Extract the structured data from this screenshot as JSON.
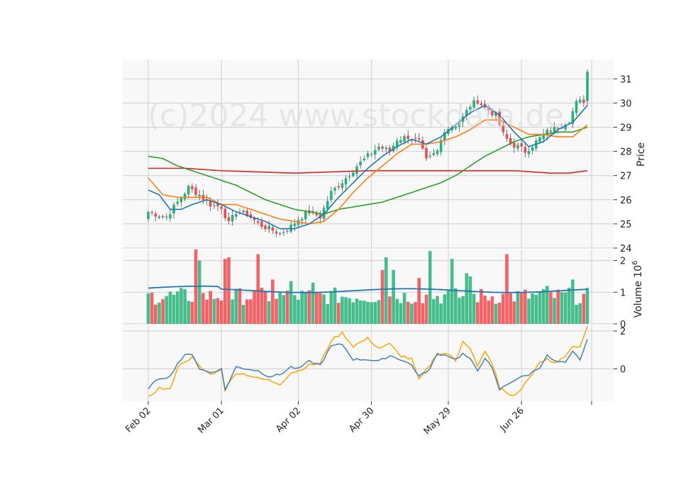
{
  "watermark": "(c)2024 www.stockdata.de",
  "chart_data": {
    "type": "candlestick",
    "colors": {
      "up": "#26b37a",
      "down": "#f0494e",
      "ma_short": "#1f77b4",
      "ma_mid": "#ff7f0e",
      "ma_long": "#2ca02c",
      "ma_longest": "#d62728",
      "volume_ma": "#1f77b4",
      "osc_a": "#4682b4",
      "osc_b": "#ffa500",
      "grid": "#d0d0d0",
      "panel_bg": "#f8f8f8"
    },
    "x_tick_labels": [
      "Feb 02",
      "Mar 01",
      "Apr 02",
      "Apr 30",
      "May 29",
      "Jun 26"
    ],
    "x_tick_index": [
      0,
      20,
      41,
      61,
      82,
      102
    ],
    "n_points": 121,
    "price_panel": {
      "ylabel": "Price",
      "ylim": [
        24,
        31.8
      ],
      "yticks": [
        24,
        25,
        26,
        27,
        28,
        29,
        30,
        31
      ],
      "close_anchors": [
        [
          0,
          25.5
        ],
        [
          2,
          25.4
        ],
        [
          5,
          25.3
        ],
        [
          8,
          25.9
        ],
        [
          11,
          26.5
        ],
        [
          14,
          26.2
        ],
        [
          17,
          25.8
        ],
        [
          20,
          25.7
        ],
        [
          22,
          25.0
        ],
        [
          24,
          25.5
        ],
        [
          27,
          25.4
        ],
        [
          30,
          25.0
        ],
        [
          33,
          24.8
        ],
        [
          36,
          24.6
        ],
        [
          39,
          24.9
        ],
        [
          41,
          25.2
        ],
        [
          44,
          25.5
        ],
        [
          47,
          25.3
        ],
        [
          50,
          26.3
        ],
        [
          54,
          26.9
        ],
        [
          57,
          27.4
        ],
        [
          60,
          27.8
        ],
        [
          63,
          28.2
        ],
        [
          66,
          28.0
        ],
        [
          68,
          28.5
        ],
        [
          71,
          28.6
        ],
        [
          74,
          28.4
        ],
        [
          76,
          27.6
        ],
        [
          79,
          28.0
        ],
        [
          81,
          28.9
        ],
        [
          84,
          29.1
        ],
        [
          86,
          29.4
        ],
        [
          88,
          29.9
        ],
        [
          90,
          30.1
        ],
        [
          92,
          29.8
        ],
        [
          95,
          29.5
        ],
        [
          97,
          28.7
        ],
        [
          99,
          28.3
        ],
        [
          101,
          28.2
        ],
        [
          103,
          28.0
        ],
        [
          106,
          28.4
        ],
        [
          109,
          28.8
        ],
        [
          112,
          29.0
        ],
        [
          115,
          29.3
        ],
        [
          117,
          30.0
        ],
        [
          119,
          30.1
        ],
        [
          120,
          31.3
        ]
      ],
      "ma_short_anchors": [
        [
          0,
          26.4
        ],
        [
          3,
          26.2
        ],
        [
          6,
          25.6
        ],
        [
          9,
          25.6
        ],
        [
          12,
          25.8
        ],
        [
          16,
          26.0
        ],
        [
          20,
          25.8
        ],
        [
          24,
          25.5
        ],
        [
          28,
          25.3
        ],
        [
          32,
          25.1
        ],
        [
          36,
          24.8
        ],
        [
          40,
          24.8
        ],
        [
          44,
          25.0
        ],
        [
          48,
          25.4
        ],
        [
          52,
          26.1
        ],
        [
          56,
          26.7
        ],
        [
          60,
          27.3
        ],
        [
          64,
          27.8
        ],
        [
          68,
          28.2
        ],
        [
          72,
          28.5
        ],
        [
          76,
          28.3
        ],
        [
          80,
          28.6
        ],
        [
          84,
          29.1
        ],
        [
          88,
          29.6
        ],
        [
          92,
          29.9
        ],
        [
          96,
          29.5
        ],
        [
          100,
          28.8
        ],
        [
          104,
          28.2
        ],
        [
          108,
          28.4
        ],
        [
          112,
          28.9
        ],
        [
          116,
          29.2
        ],
        [
          120,
          29.9
        ]
      ],
      "ma_mid_anchors": [
        [
          0,
          26.9
        ],
        [
          4,
          26.2
        ],
        [
          8,
          26.1
        ],
        [
          12,
          26.1
        ],
        [
          16,
          26.1
        ],
        [
          20,
          25.8
        ],
        [
          24,
          25.8
        ],
        [
          28,
          25.6
        ],
        [
          32,
          25.4
        ],
        [
          36,
          25.2
        ],
        [
          40,
          25.1
        ],
        [
          44,
          25.0
        ],
        [
          48,
          25.1
        ],
        [
          52,
          25.6
        ],
        [
          56,
          26.3
        ],
        [
          60,
          26.9
        ],
        [
          64,
          27.4
        ],
        [
          68,
          27.9
        ],
        [
          72,
          28.3
        ],
        [
          76,
          28.3
        ],
        [
          80,
          28.4
        ],
        [
          84,
          28.6
        ],
        [
          88,
          28.9
        ],
        [
          92,
          29.3
        ],
        [
          96,
          29.3
        ],
        [
          100,
          29.0
        ],
        [
          104,
          28.7
        ],
        [
          108,
          28.7
        ],
        [
          112,
          28.6
        ],
        [
          116,
          28.6
        ],
        [
          120,
          29.1
        ]
      ],
      "ma_long_anchors": [
        [
          0,
          27.8
        ],
        [
          4,
          27.7
        ],
        [
          8,
          27.4
        ],
        [
          12,
          27.2
        ],
        [
          16,
          27.0
        ],
        [
          20,
          26.8
        ],
        [
          24,
          26.6
        ],
        [
          28,
          26.3
        ],
        [
          32,
          26.0
        ],
        [
          36,
          25.8
        ],
        [
          40,
          25.6
        ],
        [
          44,
          25.5
        ],
        [
          48,
          25.4
        ],
        [
          52,
          25.6
        ],
        [
          56,
          25.7
        ],
        [
          60,
          25.8
        ],
        [
          64,
          25.9
        ],
        [
          68,
          26.1
        ],
        [
          72,
          26.3
        ],
        [
          76,
          26.5
        ],
        [
          80,
          26.7
        ],
        [
          84,
          27.0
        ],
        [
          88,
          27.4
        ],
        [
          92,
          27.8
        ],
        [
          96,
          28.1
        ],
        [
          100,
          28.4
        ],
        [
          104,
          28.6
        ],
        [
          108,
          28.7
        ],
        [
          112,
          28.8
        ],
        [
          116,
          28.8
        ],
        [
          120,
          29.0
        ]
      ],
      "ma_longest_anchors": [
        [
          0,
          27.3
        ],
        [
          10,
          27.3
        ],
        [
          20,
          27.2
        ],
        [
          30,
          27.15
        ],
        [
          40,
          27.1
        ],
        [
          50,
          27.15
        ],
        [
          60,
          27.2
        ],
        [
          70,
          27.2
        ],
        [
          80,
          27.2
        ],
        [
          90,
          27.2
        ],
        [
          100,
          27.2
        ],
        [
          110,
          27.1
        ],
        [
          115,
          27.1
        ],
        [
          120,
          27.2
        ]
      ]
    },
    "volume_panel": {
      "ylabel": "Volume  10",
      "ylabel_exponent": "6",
      "ylim": [
        0,
        2.35
      ],
      "yticks": [
        0,
        1,
        2
      ],
      "volume_ma_level": 1.05,
      "spikes": [
        [
          13,
          2.35
        ],
        [
          14,
          2.0
        ],
        [
          21,
          2.05
        ],
        [
          22,
          2.1
        ],
        [
          30,
          2.2
        ],
        [
          34,
          1.4
        ],
        [
          39,
          1.35
        ],
        [
          45,
          1.3
        ],
        [
          64,
          1.7
        ],
        [
          65,
          2.1
        ],
        [
          67,
          1.7
        ],
        [
          74,
          1.45
        ],
        [
          77,
          2.3
        ],
        [
          83,
          2.05
        ],
        [
          87,
          1.6
        ],
        [
          88,
          1.5
        ],
        [
          98,
          2.2
        ],
        [
          109,
          1.2
        ],
        [
          116,
          1.4
        ]
      ]
    },
    "oscillator_panel": {
      "yticks": [
        0,
        2
      ],
      "ylim": [
        -1.7,
        2.3
      ],
      "osc_a_anchors": [
        [
          0,
          -1.0
        ],
        [
          3,
          -0.5
        ],
        [
          6,
          -0.4
        ],
        [
          8,
          0.3
        ],
        [
          10,
          0.7
        ],
        [
          12,
          0.8
        ],
        [
          14,
          0.0
        ],
        [
          17,
          -0.2
        ],
        [
          20,
          0.0
        ],
        [
          21,
          -1.1
        ],
        [
          24,
          0.1
        ],
        [
          27,
          0.0
        ],
        [
          30,
          -0.1
        ],
        [
          33,
          -0.4
        ],
        [
          36,
          -0.3
        ],
        [
          39,
          0.1
        ],
        [
          41,
          0.0
        ],
        [
          44,
          0.4
        ],
        [
          47,
          0.2
        ],
        [
          50,
          1.2
        ],
        [
          53,
          1.3
        ],
        [
          56,
          0.5
        ],
        [
          60,
          0.5
        ],
        [
          63,
          0.4
        ],
        [
          66,
          0.7
        ],
        [
          69,
          0.5
        ],
        [
          72,
          0.2
        ],
        [
          74,
          -0.4
        ],
        [
          77,
          0.0
        ],
        [
          79,
          0.8
        ],
        [
          82,
          0.7
        ],
        [
          84,
          0.5
        ],
        [
          86,
          0.8
        ],
        [
          88,
          0.5
        ],
        [
          90,
          -0.1
        ],
        [
          92,
          0.6
        ],
        [
          94,
          0.0
        ],
        [
          96,
          -1.1
        ],
        [
          99,
          -0.7
        ],
        [
          101,
          -0.5
        ],
        [
          104,
          -0.3
        ],
        [
          107,
          0.1
        ],
        [
          109,
          0.7
        ],
        [
          111,
          0.4
        ],
        [
          114,
          0.3
        ],
        [
          116,
          0.9
        ],
        [
          118,
          0.5
        ],
        [
          120,
          1.5
        ]
      ],
      "osc_b_anchors": [
        [
          0,
          -1.5
        ],
        [
          3,
          -1.0
        ],
        [
          6,
          -1.1
        ],
        [
          8,
          0.1
        ],
        [
          10,
          0.4
        ],
        [
          12,
          0.6
        ],
        [
          14,
          0.1
        ],
        [
          17,
          -0.3
        ],
        [
          20,
          0.0
        ],
        [
          21,
          -1.1
        ],
        [
          24,
          -0.2
        ],
        [
          27,
          -0.3
        ],
        [
          30,
          -0.5
        ],
        [
          33,
          -0.6
        ],
        [
          36,
          -0.8
        ],
        [
          39,
          -0.2
        ],
        [
          41,
          -0.1
        ],
        [
          44,
          0.2
        ],
        [
          47,
          0.3
        ],
        [
          50,
          1.5
        ],
        [
          53,
          1.9
        ],
        [
          56,
          1.2
        ],
        [
          60,
          1.6
        ],
        [
          63,
          1.1
        ],
        [
          66,
          1.3
        ],
        [
          69,
          0.7
        ],
        [
          72,
          0.5
        ],
        [
          74,
          -0.6
        ],
        [
          77,
          0.2
        ],
        [
          79,
          0.8
        ],
        [
          82,
          0.8
        ],
        [
          84,
          0.4
        ],
        [
          86,
          1.5
        ],
        [
          88,
          1.1
        ],
        [
          90,
          0.1
        ],
        [
          92,
          0.9
        ],
        [
          94,
          0.3
        ],
        [
          96,
          -1.0
        ],
        [
          99,
          -1.4
        ],
        [
          101,
          -1.3
        ],
        [
          104,
          -0.5
        ],
        [
          107,
          0.3
        ],
        [
          109,
          0.5
        ],
        [
          111,
          0.3
        ],
        [
          114,
          0.7
        ],
        [
          116,
          1.2
        ],
        [
          118,
          1.1
        ],
        [
          120,
          2.2
        ]
      ]
    }
  }
}
